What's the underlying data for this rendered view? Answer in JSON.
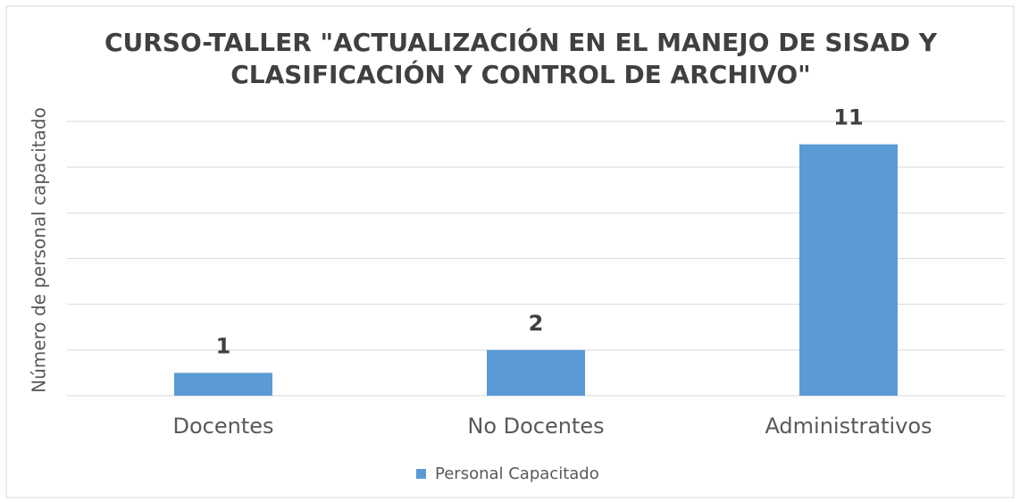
{
  "chart_data": {
    "type": "bar",
    "title": "CURSO-TALLER \"ACTUALIZACIÓN EN EL MANEJO DE SISAD Y CLASIFICACIÓN Y CONTROL DE ARCHIVO\"",
    "y_label": "Número de personal capacitado",
    "categories": [
      "Docentes",
      "No Docentes",
      "Administrativos"
    ],
    "series": [
      {
        "name": "Personal Capacitado",
        "color": "#5b9bd5",
        "values": [
          1,
          2,
          11
        ]
      }
    ],
    "ylim": [
      0,
      12
    ],
    "yticks": [
      0,
      2,
      4,
      6,
      8,
      10,
      12
    ],
    "grid": true,
    "legend": "bottom"
  }
}
